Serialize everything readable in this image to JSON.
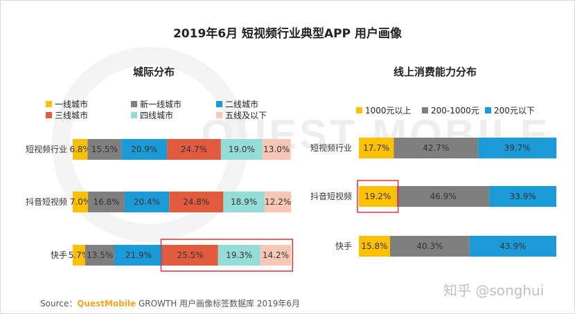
{
  "title": "2019年6月 短视频行业典型APP 用户画像",
  "watermark": "QUEST MOBILE",
  "source": {
    "label": "Source：",
    "brand": "QuestMobile",
    "rest": " GROWTH 用户画像标签数据库 2019年6月"
  },
  "zhihu_watermark": "知乎 @songhui",
  "colors": {
    "yellow": "#ffc000",
    "gray": "#7f7f7f",
    "blue": "#1a9ad6",
    "red": "#e35b3e",
    "teal": "#95dcd6",
    "pink": "#f7c6b5",
    "highlight": "#e0333a"
  },
  "chart_data": [
    {
      "type": "bar",
      "stacked": true,
      "orientation": "horizontal",
      "title": "城际分布",
      "categories": [
        "短视频行业",
        "抖音短视频",
        "快手"
      ],
      "series": [
        {
          "name": "一线城市",
          "color": "#ffc000",
          "values": [
            6.8,
            7.0,
            5.7
          ],
          "labels": [
            "6.8%",
            "7.0%",
            "5.7%"
          ]
        },
        {
          "name": "新一线城市",
          "color": "#7f7f7f",
          "values": [
            15.5,
            16.8,
            13.5
          ],
          "labels": [
            "15.5%",
            "16.8%",
            "13.5%"
          ]
        },
        {
          "name": "二线城市",
          "color": "#1a9ad6",
          "values": [
            20.9,
            20.4,
            21.9
          ],
          "labels": [
            "20.9%",
            "20.4%",
            "21.9%"
          ]
        },
        {
          "name": "三线城市",
          "color": "#e35b3e",
          "values": [
            24.7,
            24.8,
            25.5
          ],
          "labels": [
            "24.7%",
            "24.8%",
            "25.5%"
          ]
        },
        {
          "name": "四线城市",
          "color": "#95dcd6",
          "values": [
            19.0,
            18.9,
            19.3
          ],
          "labels": [
            "19.0%",
            "18.9%",
            "19.3%"
          ]
        },
        {
          "name": "五线及以下",
          "color": "#f7c6b5",
          "values": [
            13.0,
            12.2,
            14.2
          ],
          "labels": [
            "13.0%",
            "12.2%",
            "14.2%"
          ]
        }
      ],
      "xlim": [
        0,
        100
      ],
      "legend_position": "top",
      "highlight": {
        "category": "快手",
        "series": [
          "三线城市",
          "四线城市",
          "五线及以下"
        ]
      }
    },
    {
      "type": "bar",
      "stacked": true,
      "orientation": "horizontal",
      "title": "线上消费能力分布",
      "categories": [
        "短视频行业",
        "抖音短视频",
        "快手"
      ],
      "series": [
        {
          "name": "1000元以上",
          "color": "#ffc000",
          "values": [
            17.7,
            19.2,
            15.8
          ],
          "labels": [
            "17.7%",
            "19.2%",
            "15.8%"
          ]
        },
        {
          "name": "200-1000元",
          "color": "#7f7f7f",
          "values": [
            42.7,
            46.9,
            40.3
          ],
          "labels": [
            "42.7%",
            "46.9%",
            "40.3%"
          ]
        },
        {
          "name": "200元以下",
          "color": "#1a9ad6",
          "values": [
            39.7,
            33.9,
            43.9
          ],
          "labels": [
            "39.7%",
            "33.9%",
            "43.9%"
          ]
        }
      ],
      "xlim": [
        0,
        100
      ],
      "legend_position": "top",
      "highlight": {
        "category": "抖音短视频",
        "series": [
          "1000元以上"
        ]
      }
    }
  ]
}
